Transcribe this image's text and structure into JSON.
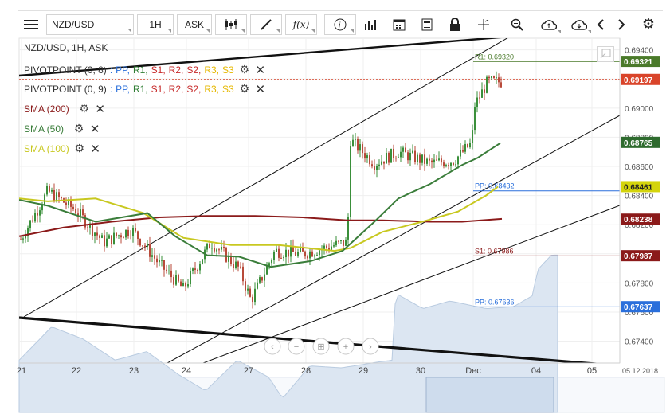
{
  "toolbar": {
    "symbol": "NZD/USD",
    "timeframe": "1H",
    "price_type": "ASK",
    "icons": [
      "menu-icon",
      "candles-icon",
      "draw-icon",
      "function-icon",
      "info-icon",
      "volume-icon",
      "calendar-icon",
      "news-icon",
      "lock-icon",
      "crosshair-icon",
      "zoom-icon",
      "cloud-upload-icon",
      "cloud-download-icon",
      "arrow-left-icon",
      "arrow-right-icon",
      "settings-icon"
    ]
  },
  "legend": {
    "title": "NZD/USD, 1H, ASK",
    "pivot1_name": "PIVOTPOINT (0, 8)",
    "pivot2_name": "PIVOTPOINT (0, 9)",
    "pivot_sep": ":",
    "pivot_labels": [
      "PP",
      "R1",
      "S1",
      "R2",
      "S2",
      "R3",
      "S3"
    ],
    "pivot_colors": [
      "#2a6fdb",
      "#2e7d32",
      "#c62828",
      "#c62828",
      "#c62828",
      "#e6b800",
      "#e6b800"
    ],
    "sma200": "SMA (200)",
    "sma50": "SMA (50)",
    "sma100": "SMA (100)",
    "sma200_color": "#8b1a1a",
    "sma50_color": "#3a7d3a",
    "sma100_color": "#c8c820"
  },
  "chart_data": {
    "type": "candlestick",
    "title": "NZD/USD, 1H, ASK",
    "x_labels": [
      "21",
      "22",
      "23",
      "24",
      "27",
      "28",
      "29",
      "30",
      "Dec",
      "04",
      "05"
    ],
    "y_ticks": [
      "0.69400",
      "0.69200",
      "0.69000",
      "0.68800",
      "0.68600",
      "0.68400",
      "0.68200",
      "0.68000",
      "0.67800",
      "0.67600",
      "0.67400"
    ],
    "current_date": "05.12.2018",
    "price_labels": [
      {
        "text": "0.69321",
        "color": "#4a7a2a"
      },
      {
        "text": "0.69197",
        "color": "#d9442a"
      },
      {
        "text": "0.68765",
        "color": "#2e6b2e"
      },
      {
        "text": "0.68461",
        "color": "#d4d40c"
      },
      {
        "text": "0.68238",
        "color": "#8b1a1a"
      },
      {
        "text": "0.67987",
        "color": "#8b1a1a"
      },
      {
        "text": "0.67637",
        "color": "#2a6fdb"
      }
    ],
    "pivot_lines": [
      {
        "label": "R1: 0.69320",
        "value": 0.6932,
        "color": "#4a7a2a"
      },
      {
        "label": "PP: 0.68432",
        "value": 0.68432,
        "color": "#2a6fdb"
      },
      {
        "label": "S1: 0.67986",
        "value": 0.67986,
        "color": "#8b1a1a"
      },
      {
        "label": "PP: 0.67636",
        "value": 0.67636,
        "color": "#2a6fdb"
      }
    ],
    "current_price": 0.69197,
    "ylim": [
      0.6725,
      0.6948
    ]
  }
}
